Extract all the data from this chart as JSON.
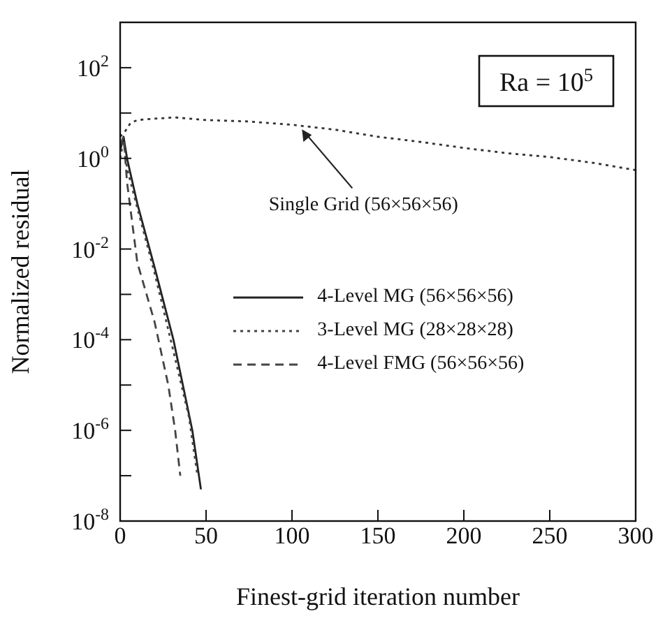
{
  "chart_data": {
    "type": "line",
    "xlabel": "Finest-grid iteration number",
    "ylabel": "Normalized residual",
    "log": "y",
    "xlim": [
      0,
      300
    ],
    "xticks": [
      0,
      50,
      100,
      150,
      200,
      250,
      300
    ],
    "ylim": [
      1e-08,
      1000
    ],
    "yticks": [
      {
        "value": 1e-08,
        "label": "10$^{-8}$"
      },
      {
        "value": 1e-07,
        "label": null
      },
      {
        "value": 1e-06,
        "label": "10$^{-6}$"
      },
      {
        "value": 1e-05,
        "label": null
      },
      {
        "value": 0.0001,
        "label": "10$^{-4}$"
      },
      {
        "value": 0.001,
        "label": null
      },
      {
        "value": 0.01,
        "label": "10$^{-2}$"
      },
      {
        "value": 0.1,
        "label": null
      },
      {
        "value": 1,
        "label": "10$^{0}$"
      },
      {
        "value": 10,
        "label": null
      },
      {
        "value": 100,
        "label": "10$^{2}$"
      }
    ],
    "legend": "right",
    "marker": "none",
    "series": [
      {
        "color": "#333333",
        "line_style": "dotted",
        "x": [
          0,
          3,
          6,
          10,
          20,
          32,
          50,
          75,
          100,
          125,
          150,
          175,
          200,
          225,
          250,
          275,
          300
        ],
        "values": [
          3,
          4,
          6,
          7,
          7.5,
          8,
          7,
          6.5,
          5.5,
          4.3,
          3,
          2.3,
          1.7,
          1.3,
          1.07,
          0.8,
          0.55
        ]
      },
      {
        "name": "4-Level MG (56×56×56)",
        "color": "#222222",
        "line_style": "solid",
        "x": [
          0,
          2,
          4,
          10,
          20,
          31,
          42,
          47
        ],
        "values": [
          1.5,
          3,
          1,
          0.1,
          0.004,
          0.0001,
          1e-06,
          5e-08
        ]
      },
      {
        "name": "3-Level MG (28×28×28)",
        "color": "#444444",
        "line_style": "dotted",
        "x": [
          0,
          2,
          4,
          10,
          20,
          30,
          40,
          45
        ],
        "values": [
          1,
          2.5,
          0.6,
          0.08,
          0.003,
          8e-05,
          2e-06,
          1e-07
        ]
      },
      {
        "name": "4-Level FMG (56×56×56)",
        "color": "#444444",
        "line_style": "dashed",
        "x": [
          0,
          2,
          4,
          10,
          20,
          28,
          32,
          35
        ],
        "values": [
          2,
          3,
          0.3,
          0.005,
          0.00025,
          1e-05,
          1e-06,
          1e-07
        ]
      }
    ],
    "annotations": [
      {
        "text": "Single Grid (56×56×56)",
        "x": 105,
        "y": 5
      },
      "Ra = 10$^{5}$"
    ]
  }
}
